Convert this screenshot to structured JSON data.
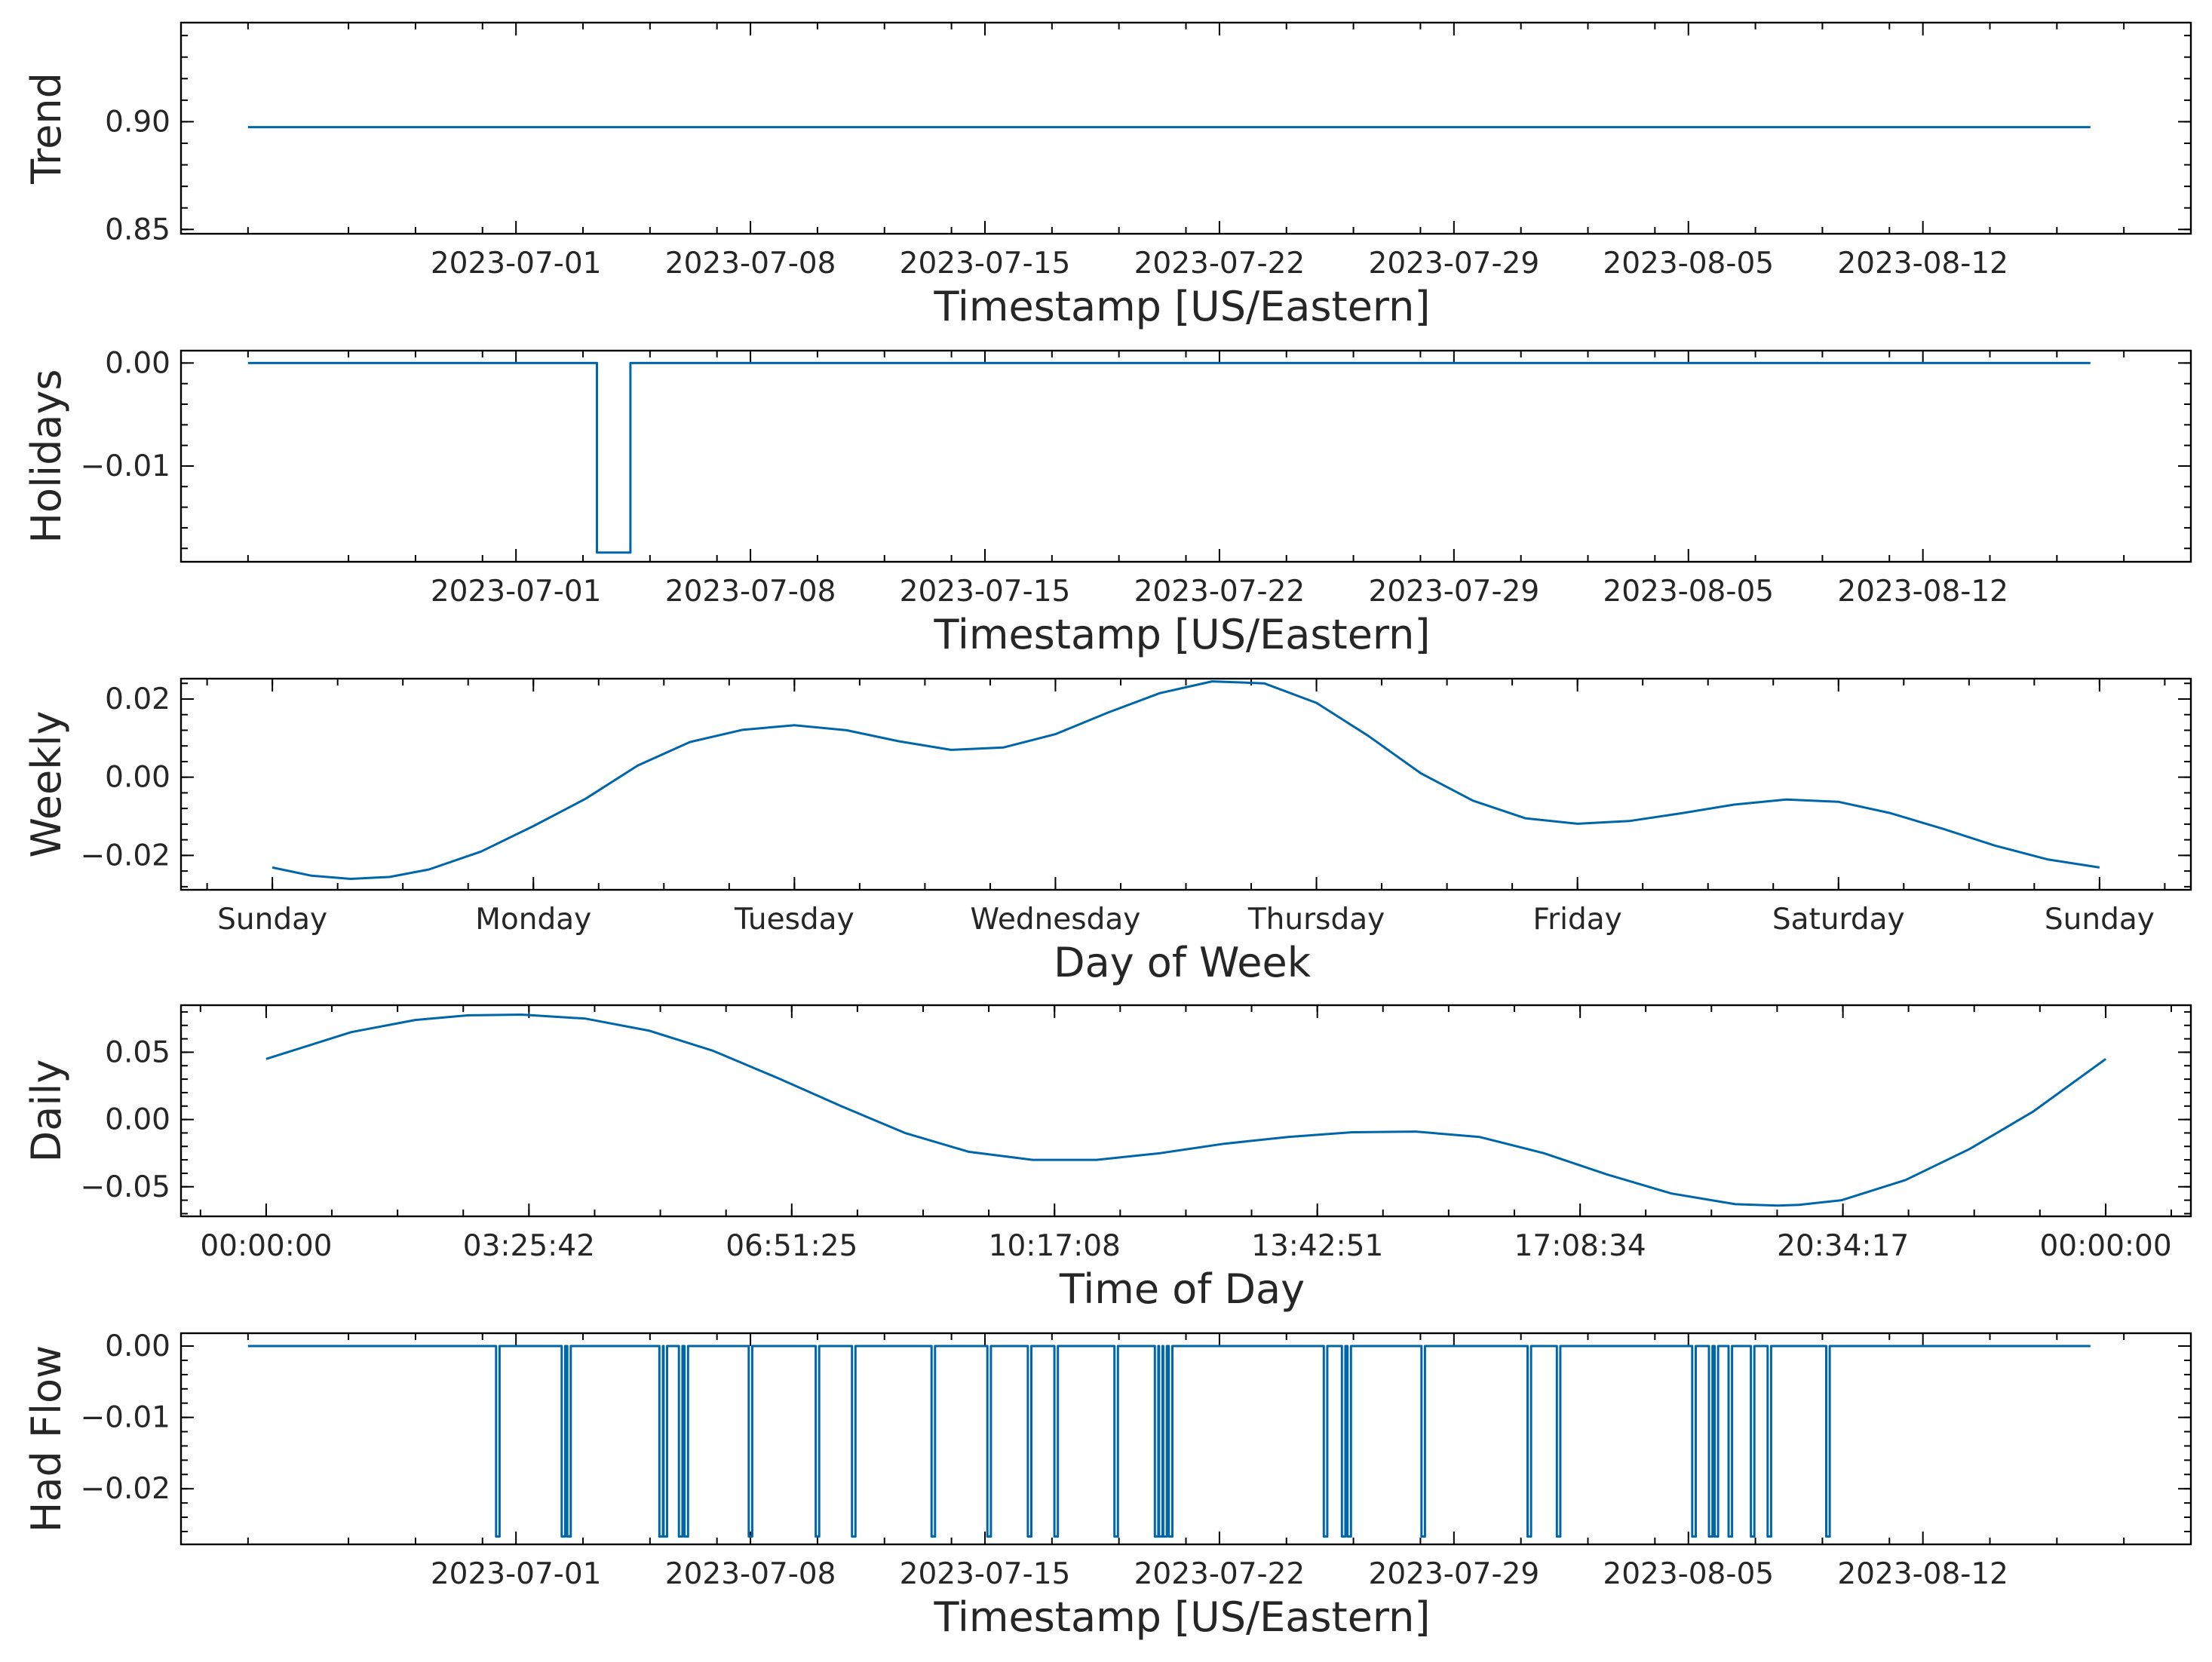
{
  "colors": {
    "line": "#0066aa",
    "axis": "#000000",
    "text": "#262626"
  },
  "chart_data": [
    {
      "type": "line",
      "xlabel": "Timestamp [US/Eastern]",
      "ylabel": "Trend",
      "x_axis": "date",
      "xlim": [
        "2023-06-21",
        "2023-08-20"
      ],
      "ylim": [
        0.848,
        0.946
      ],
      "xticks": [
        "2023-07-01",
        "2023-07-08",
        "2023-07-15",
        "2023-07-22",
        "2023-07-29",
        "2023-08-05",
        "2023-08-12"
      ],
      "yticks": [
        0.85,
        0.9
      ],
      "ytick_labels": [
        "0.85",
        "0.90"
      ],
      "series": [
        {
          "x": [
            "2023-06-23",
            "2023-08-17"
          ],
          "y": [
            0.8975,
            0.8975
          ]
        }
      ],
      "grid": false
    },
    {
      "type": "line",
      "xlabel": "Timestamp [US/Eastern]",
      "ylabel": "Holidays",
      "x_axis": "date",
      "xlim": [
        "2023-06-21",
        "2023-08-20"
      ],
      "ylim": [
        -0.0193,
        0.0012
      ],
      "xticks": [
        "2023-07-01",
        "2023-07-08",
        "2023-07-15",
        "2023-07-22",
        "2023-07-29",
        "2023-08-05",
        "2023-08-12"
      ],
      "yticks": [
        0.0,
        -0.01
      ],
      "ytick_labels": [
        "0.00",
        "−0.01"
      ],
      "series": [
        {
          "x": [
            "2023-06-23",
            "2023-07-03 10:00",
            "2023-07-03 10:00",
            "2023-07-04 10:00",
            "2023-07-04 10:00",
            "2023-08-17"
          ],
          "y": [
            0,
            0,
            -0.0184,
            -0.0184,
            0,
            0
          ]
        }
      ],
      "grid": false
    },
    {
      "type": "line",
      "xlabel": "Day of Week",
      "ylabel": "Weekly",
      "x_axis": "day",
      "xlim": [
        -0.35,
        7.35
      ],
      "ylim": [
        -0.0288,
        0.0252
      ],
      "xticks": [
        0,
        1,
        2,
        3,
        4,
        5,
        6,
        7
      ],
      "xtick_labels": [
        "Sunday",
        "Monday",
        "Tuesday",
        "Wednesday",
        "Thursday",
        "Friday",
        "Saturday",
        "Sunday"
      ],
      "yticks": [
        0.02,
        0.0,
        -0.02
      ],
      "ytick_labels": [
        "0.02",
        "0.00",
        "−0.02"
      ],
      "series": [
        {
          "x": [
            0,
            0.15,
            0.3,
            0.45,
            0.6,
            0.8,
            1.0,
            1.2,
            1.4,
            1.6,
            1.8,
            2.0,
            2.2,
            2.4,
            2.6,
            2.8,
            3.0,
            3.2,
            3.4,
            3.6,
            3.8,
            4.0,
            4.2,
            4.4,
            4.6,
            4.8,
            5.0,
            5.2,
            5.4,
            5.6,
            5.8,
            6.0,
            6.2,
            6.4,
            6.6,
            6.8,
            7.0
          ],
          "y": [
            -0.0231,
            -0.0252,
            -0.026,
            -0.0255,
            -0.0236,
            -0.019,
            -0.0125,
            -0.0055,
            0.003,
            0.009,
            0.0121,
            0.0133,
            0.012,
            0.0092,
            0.007,
            0.0076,
            0.011,
            0.0165,
            0.0215,
            0.0245,
            0.024,
            0.019,
            0.0105,
            0.001,
            -0.006,
            -0.0105,
            -0.0119,
            -0.0112,
            -0.0092,
            -0.007,
            -0.0057,
            -0.0063,
            -0.0092,
            -0.0132,
            -0.0175,
            -0.021,
            -0.0231
          ]
        }
      ],
      "grid": false
    },
    {
      "type": "line",
      "xlabel": "Time of Day",
      "ylabel": "Daily",
      "x_axis": "seconds",
      "xlim": [
        -4000,
        90400
      ],
      "ylim": [
        -0.072,
        0.085
      ],
      "xticks": [
        0,
        12342,
        24685,
        37028,
        49371,
        61714,
        74057,
        86400
      ],
      "xtick_labels": [
        "00:00:00",
        "03:25:42",
        "06:51:25",
        "10:17:08",
        "13:42:51",
        "17:08:34",
        "20:34:17",
        "00:00:00"
      ],
      "yticks": [
        0.05,
        0.0,
        -0.05
      ],
      "ytick_labels": [
        "0.05",
        "0.00",
        "−0.05"
      ],
      "series": [
        {
          "x": [
            0,
            4000,
            7000,
            9500,
            12000,
            15000,
            18000,
            21000,
            24000,
            27000,
            30000,
            33000,
            36000,
            39000,
            42000,
            45000,
            48000,
            51000,
            54000,
            57000,
            60000,
            63000,
            66000,
            69000,
            71000,
            72000,
            74000,
            77000,
            80000,
            83000,
            86400
          ],
          "y": [
            0.045,
            0.065,
            0.074,
            0.0775,
            0.078,
            0.075,
            0.066,
            0.051,
            0.031,
            0.01,
            -0.01,
            -0.024,
            -0.03,
            -0.03,
            -0.025,
            -0.018,
            -0.013,
            -0.0095,
            -0.009,
            -0.013,
            -0.025,
            -0.041,
            -0.055,
            -0.063,
            -0.064,
            -0.0635,
            -0.06,
            -0.045,
            -0.022,
            0.006,
            0.045
          ]
        }
      ],
      "grid": false
    },
    {
      "type": "line",
      "xlabel": "Timestamp [US/Eastern]",
      "ylabel": "Had Flow",
      "x_axis": "date",
      "xlim": [
        "2023-06-21",
        "2023-08-20"
      ],
      "ylim": [
        -0.0278,
        0.0018
      ],
      "xticks": [
        "2023-07-01",
        "2023-07-08",
        "2023-07-15",
        "2023-07-22",
        "2023-07-29",
        "2023-08-05",
        "2023-08-12"
      ],
      "yticks": [
        0.0,
        -0.01,
        -0.02
      ],
      "ytick_labels": [
        "0.00",
        "−0.01",
        "−0.02"
      ],
      "baseline": 0,
      "spike_value": -0.0267,
      "spike_dates": [
        "2023-06-30 11:00",
        "2023-07-02 10:00",
        "2023-07-02 14:00",
        "2023-07-05 08:00",
        "2023-07-05 11:00",
        "2023-07-05 22:00",
        "2023-07-06 02:00",
        "2023-07-08 00:00",
        "2023-07-10 00:00",
        "2023-07-11 02:00",
        "2023-07-13 11:00",
        "2023-07-15 03:00",
        "2023-07-16 08:00",
        "2023-07-17 03:00",
        "2023-07-18 22:00",
        "2023-07-20 03:00",
        "2023-07-20 06:00",
        "2023-07-20 09:00",
        "2023-07-20 13:00",
        "2023-07-25 04:00",
        "2023-07-25 17:00",
        "2023-07-25 21:00",
        "2023-07-28 02:00",
        "2023-07-31 06:00",
        "2023-08-01 03:00",
        "2023-08-05 04:00",
        "2023-08-05 16:00",
        "2023-08-05 20:00",
        "2023-08-06 06:00",
        "2023-08-06 22:00",
        "2023-08-07 10:00",
        "2023-08-09 04:00"
      ],
      "spike_width_hours": 2.5,
      "x_range": [
        "2023-06-23",
        "2023-08-17"
      ],
      "grid": false
    }
  ]
}
